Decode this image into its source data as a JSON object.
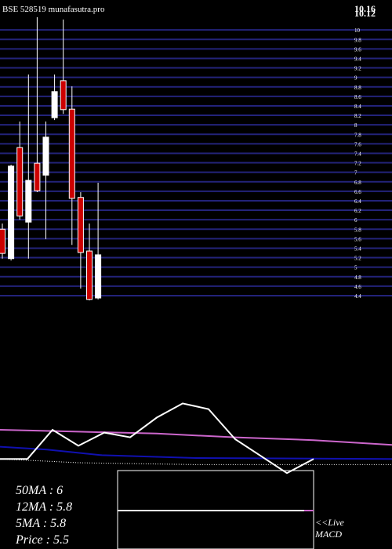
{
  "chart_data": {
    "type": "candlestick",
    "title": "BSE 528519 munafasutra.pro",
    "corner_labels": [
      "10.16",
      "10.12"
    ],
    "ylim": [
      4.3,
      10.3
    ],
    "yticks": [
      4.4,
      4.6,
      4.8,
      5,
      5.2,
      5.4,
      5.6,
      5.8,
      6,
      6.2,
      6.4,
      6.6,
      6.8,
      7,
      7.2,
      7.4,
      7.6,
      7.8,
      8,
      8.2,
      8.4,
      8.6,
      8.8,
      9,
      9.2,
      9.4,
      9.6,
      9.8,
      10
    ],
    "grid_color": "#23237a",
    "up_color": "#ffffff",
    "down_color": "#cc0000",
    "open": [
      5.8,
      5.18,
      7.52,
      5.95,
      7.19,
      6.94,
      8.15,
      8.93,
      8.33,
      6.47,
      5.34,
      4.35
    ],
    "high": [
      5.92,
      7.16,
      8.07,
      9.06,
      10.27,
      8.07,
      9.06,
      10.22,
      8.81,
      6.58,
      5.92,
      6.78
    ],
    "low": [
      5.18,
      5.14,
      6.0,
      5.18,
      6.58,
      5.59,
      8.1,
      8.23,
      5.47,
      4.55,
      4.3,
      4.32
    ],
    "close": [
      5.29,
      7.13,
      6.08,
      6.83,
      6.61,
      7.74,
      8.7,
      8.32,
      6.45,
      5.31,
      4.32,
      5.26
    ],
    "indicators": {
      "xlim": [
        0,
        500
      ],
      "ylim": [
        0,
        100
      ],
      "series": [
        {
          "color": "#cc66cc",
          "x": [
            0,
            100,
            200,
            300,
            400,
            500
          ],
          "values": [
            60,
            58,
            56,
            52,
            49,
            44
          ]
        },
        {
          "color": "#1010b0",
          "x": [
            0,
            60,
            130,
            250,
            500
          ],
          "values": [
            42,
            39,
            33,
            30,
            29
          ]
        },
        {
          "color": "#ffffff",
          "dotted": true,
          "x": [
            0,
            100,
            250,
            500
          ],
          "values": [
            29,
            25,
            23,
            23
          ]
        },
        {
          "color": "#ffffff",
          "x": [
            0,
            35,
            67,
            100,
            133,
            166,
            200,
            233,
            266,
            300,
            333,
            366,
            400
          ],
          "values": [
            29,
            29,
            60,
            43,
            57,
            52,
            73,
            88,
            82,
            50,
            32,
            14,
            29
          ]
        }
      ]
    },
    "legend": [
      "50MA : 6",
      "12MA : 5.8",
      "5MA : 5.8",
      "Price  : 5.5"
    ],
    "macd_label": [
      "<<Live",
      "MACD"
    ]
  }
}
